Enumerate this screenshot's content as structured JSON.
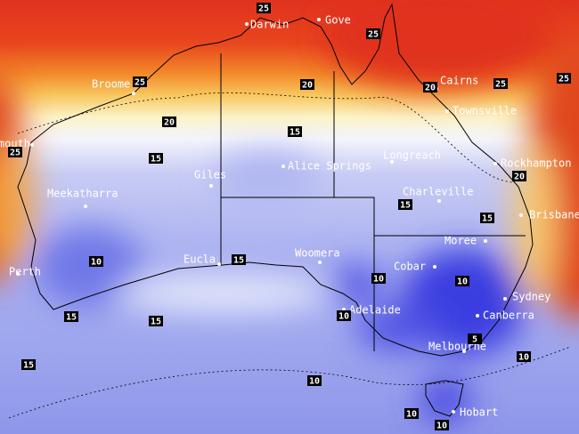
{
  "cities": [
    "Darwin",
    "Gove",
    "Broome",
    "Cairns",
    "Townsville",
    "Exmouth",
    "Alice Springs",
    "Giles",
    "Meekatharra",
    "Longreach",
    "Charleville",
    "Rockhampton",
    "Brisbane",
    "Perth",
    "Eucla",
    "Woomera",
    "Cobar",
    "Moree",
    "Adelaide",
    "Sydney",
    "Canberra",
    "Melbourne",
    "Hobart"
  ],
  "contours": [
    25,
    25,
    25,
    25,
    25,
    25,
    20,
    20,
    20,
    20,
    15,
    15,
    15,
    15,
    15,
    15,
    15,
    15,
    10,
    10,
    10,
    10,
    10,
    10,
    10,
    10,
    5
  ]
}
